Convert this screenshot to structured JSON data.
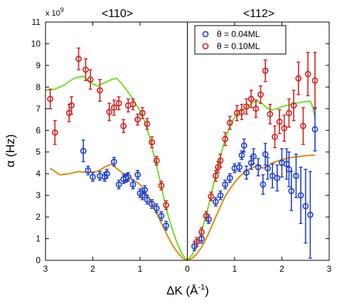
{
  "chart_data": {
    "type": "scatter",
    "xlabel_main": "ΔK (Å",
    "xlabel_sup": "-1",
    "xlabel_close": ")",
    "ylabel": "α (Hz)",
    "y_multiplier": "x 10",
    "y_multiplier_exp": "9",
    "direction_left": "<110>",
    "direction_right": "<112>",
    "xlim": [
      -3,
      3
    ],
    "ylim": [
      0,
      11
    ],
    "x_tick_values": [
      -3,
      -2,
      -1,
      0,
      1,
      2,
      3
    ],
    "x_tick_labels": [
      "3",
      "2",
      "1",
      "0",
      "1",
      "2",
      "3"
    ],
    "y_ticks": [
      0,
      1,
      2,
      3,
      4,
      5,
      6,
      7,
      8,
      9,
      10,
      11
    ],
    "colors": {
      "series_low": "#1f3fcf",
      "series_high": "#d42020",
      "fit_low": "#e08a10",
      "fit_high": "#6ee02a"
    },
    "series": [
      {
        "name": "θ = 0.04ML",
        "color": "#1f3fcf",
        "points": [
          [
            -2.2,
            5.05,
            0.5
          ],
          [
            -2.1,
            4.15,
            0.2
          ],
          [
            -2.0,
            3.85,
            0.2
          ],
          [
            -1.85,
            3.9,
            0.2
          ],
          [
            -1.75,
            3.85,
            0.2
          ],
          [
            -1.7,
            4.0,
            0.2
          ],
          [
            -1.55,
            4.55,
            0.2
          ],
          [
            -1.45,
            3.5,
            0.2
          ],
          [
            -1.35,
            3.75,
            0.2
          ],
          [
            -1.3,
            3.8,
            0.2
          ],
          [
            -1.25,
            3.85,
            0.2
          ],
          [
            -1.15,
            3.5,
            0.2
          ],
          [
            -1.05,
            3.95,
            0.2
          ],
          [
            -1.0,
            3.1,
            0.2
          ],
          [
            -0.95,
            3.0,
            0.2
          ],
          [
            -0.9,
            3.25,
            0.2
          ],
          [
            -0.85,
            2.8,
            0.2
          ],
          [
            -0.75,
            2.6,
            0.2
          ],
          [
            -0.65,
            2.4,
            0.2
          ],
          [
            -0.55,
            2.05,
            0.2
          ],
          [
            -0.45,
            1.6,
            0.2
          ],
          [
            0.15,
            0.65,
            0.2
          ],
          [
            0.3,
            1.0,
            0.2
          ],
          [
            0.45,
            1.9,
            0.2
          ],
          [
            0.6,
            2.7,
            0.2
          ],
          [
            0.7,
            3.0,
            0.2
          ],
          [
            0.8,
            3.5,
            0.2
          ],
          [
            0.9,
            3.8,
            0.2
          ],
          [
            1.0,
            4.25,
            0.2
          ],
          [
            1.1,
            4.3,
            0.2
          ],
          [
            1.15,
            4.85,
            0.2
          ],
          [
            1.2,
            5.3,
            0.3
          ],
          [
            1.25,
            4.05,
            0.3
          ],
          [
            1.35,
            4.5,
            0.3
          ],
          [
            1.4,
            4.8,
            0.35
          ],
          [
            1.5,
            4.3,
            0.4
          ],
          [
            1.6,
            3.5,
            0.45
          ],
          [
            1.65,
            4.9,
            0.5
          ],
          [
            1.7,
            4.25,
            0.5
          ],
          [
            1.8,
            3.9,
            0.55
          ],
          [
            1.9,
            3.8,
            0.6
          ],
          [
            2.0,
            4.5,
            0.65
          ],
          [
            2.1,
            4.45,
            0.7
          ],
          [
            2.15,
            4.2,
            0.8
          ],
          [
            2.2,
            3.2,
            0.9
          ],
          [
            2.3,
            3.9,
            1.0
          ],
          [
            2.4,
            3.0,
            1.3
          ],
          [
            2.5,
            2.5,
            1.7
          ],
          [
            2.6,
            2.1,
            2.0
          ],
          [
            2.7,
            6.05,
            1.0
          ]
        ]
      },
      {
        "name": "θ = 0.10ML",
        "color": "#d42020",
        "points": [
          [
            -2.9,
            7.45,
            0.45
          ],
          [
            -2.8,
            5.9,
            0.55
          ],
          [
            -2.5,
            6.8,
            0.4
          ],
          [
            -2.45,
            7.15,
            0.4
          ],
          [
            -2.3,
            9.3,
            0.5
          ],
          [
            -2.15,
            8.8,
            0.5
          ],
          [
            -2.05,
            8.35,
            0.45
          ],
          [
            -1.85,
            7.85,
            0.5
          ],
          [
            -1.65,
            6.85,
            0.4
          ],
          [
            -1.55,
            7.05,
            0.35
          ],
          [
            -1.45,
            7.25,
            0.3
          ],
          [
            -1.35,
            6.2,
            0.3
          ],
          [
            -1.25,
            7.15,
            0.3
          ],
          [
            -1.15,
            7.2,
            0.25
          ],
          [
            -1.05,
            6.5,
            0.25
          ],
          [
            -0.95,
            6.8,
            0.25
          ],
          [
            -0.85,
            6.3,
            0.25
          ],
          [
            -0.75,
            5.45,
            0.25
          ],
          [
            -0.65,
            4.6,
            0.2
          ],
          [
            -0.55,
            3.45,
            0.2
          ],
          [
            -0.45,
            2.55,
            0.2
          ],
          [
            0.2,
            0.85,
            0.2
          ],
          [
            0.3,
            1.3,
            0.2
          ],
          [
            0.4,
            2.05,
            0.2
          ],
          [
            0.5,
            2.95,
            0.2
          ],
          [
            0.6,
            3.9,
            0.25
          ],
          [
            0.65,
            4.3,
            0.25
          ],
          [
            0.7,
            4.6,
            0.3
          ],
          [
            0.8,
            5.6,
            0.3
          ],
          [
            0.9,
            6.35,
            0.3
          ],
          [
            1.05,
            6.8,
            0.35
          ],
          [
            1.15,
            6.85,
            0.35
          ],
          [
            1.25,
            7.1,
            0.35
          ],
          [
            1.35,
            7.45,
            0.4
          ],
          [
            1.45,
            7.0,
            0.4
          ],
          [
            1.55,
            7.65,
            0.4
          ],
          [
            1.65,
            8.75,
            0.5
          ],
          [
            1.75,
            6.75,
            0.45
          ],
          [
            1.85,
            5.7,
            0.5
          ],
          [
            1.95,
            6.4,
            0.55
          ],
          [
            2.05,
            6.1,
            0.6
          ],
          [
            2.15,
            6.8,
            0.65
          ],
          [
            2.25,
            7.15,
            0.7
          ],
          [
            2.35,
            8.4,
            0.75
          ],
          [
            2.45,
            6.2,
            0.85
          ],
          [
            2.55,
            8.6,
            1.0
          ],
          [
            2.7,
            8.3,
            1.3
          ]
        ]
      }
    ],
    "fits": [
      {
        "color": "#6ee02a",
        "points": [
          [
            -3.0,
            7.85
          ],
          [
            -2.8,
            7.9
          ],
          [
            -2.6,
            8.1
          ],
          [
            -2.4,
            8.4
          ],
          [
            -2.2,
            8.5
          ],
          [
            -2.05,
            8.2
          ],
          [
            -1.9,
            8.05
          ],
          [
            -1.75,
            8.2
          ],
          [
            -1.6,
            8.35
          ],
          [
            -1.5,
            8.4
          ],
          [
            -1.4,
            8.2
          ],
          [
            -1.2,
            7.6
          ],
          [
            -1.0,
            6.9
          ],
          [
            -0.9,
            6.4
          ],
          [
            -0.8,
            5.7
          ],
          [
            -0.7,
            4.8
          ],
          [
            -0.6,
            3.9
          ],
          [
            -0.5,
            2.9
          ],
          [
            -0.4,
            2.0
          ],
          [
            -0.3,
            1.3
          ],
          [
            -0.2,
            0.7
          ],
          [
            -0.1,
            0.25
          ],
          [
            0.0,
            0.0
          ],
          [
            0.1,
            0.25
          ],
          [
            0.2,
            0.7
          ],
          [
            0.3,
            1.35
          ],
          [
            0.4,
            2.1
          ],
          [
            0.5,
            3.0
          ],
          [
            0.6,
            3.95
          ],
          [
            0.7,
            4.85
          ],
          [
            0.8,
            5.6
          ],
          [
            0.9,
            6.2
          ],
          [
            1.0,
            6.6
          ],
          [
            1.1,
            6.85
          ],
          [
            1.2,
            7.0
          ],
          [
            1.3,
            7.15
          ],
          [
            1.4,
            7.3
          ],
          [
            1.5,
            7.35
          ],
          [
            1.6,
            7.2
          ],
          [
            1.7,
            7.0
          ],
          [
            1.8,
            6.95
          ],
          [
            1.9,
            7.0
          ],
          [
            2.0,
            7.1
          ],
          [
            2.2,
            7.2
          ],
          [
            2.4,
            7.3
          ],
          [
            2.6,
            7.35
          ],
          [
            2.65,
            7.1
          ],
          [
            2.7,
            6.6
          ]
        ]
      },
      {
        "color": "#e08a10",
        "points": [
          [
            -2.9,
            4.25
          ],
          [
            -2.7,
            3.95
          ],
          [
            -2.5,
            4.0
          ],
          [
            -2.3,
            4.1
          ],
          [
            -2.1,
            4.05
          ],
          [
            -1.9,
            4.1
          ],
          [
            -1.75,
            4.3
          ],
          [
            -1.6,
            4.45
          ],
          [
            -1.5,
            4.25
          ],
          [
            -1.35,
            4.0
          ],
          [
            -1.2,
            3.8
          ],
          [
            -1.0,
            3.5
          ],
          [
            -0.9,
            3.2
          ],
          [
            -0.8,
            2.85
          ],
          [
            -0.7,
            2.4
          ],
          [
            -0.6,
            1.95
          ],
          [
            -0.5,
            1.5
          ],
          [
            -0.4,
            1.05
          ],
          [
            -0.3,
            0.65
          ],
          [
            -0.2,
            0.35
          ],
          [
            -0.1,
            0.1
          ],
          [
            0.0,
            0.0
          ],
          [
            0.1,
            0.1
          ],
          [
            0.2,
            0.3
          ],
          [
            0.3,
            0.6
          ],
          [
            0.4,
            1.0
          ],
          [
            0.5,
            1.5
          ],
          [
            0.6,
            2.0
          ],
          [
            0.7,
            2.5
          ],
          [
            0.8,
            2.95
          ],
          [
            0.9,
            3.3
          ],
          [
            1.0,
            3.6
          ],
          [
            1.1,
            3.85
          ],
          [
            1.2,
            4.05
          ],
          [
            1.3,
            4.2
          ],
          [
            1.4,
            4.3
          ],
          [
            1.5,
            4.4
          ],
          [
            1.6,
            4.25
          ],
          [
            1.7,
            4.35
          ],
          [
            1.8,
            4.5
          ],
          [
            2.0,
            4.65
          ],
          [
            2.2,
            4.75
          ],
          [
            2.4,
            4.8
          ],
          [
            2.6,
            4.85
          ],
          [
            2.7,
            4.85
          ]
        ]
      }
    ],
    "legend": {
      "position": "top-right"
    }
  }
}
